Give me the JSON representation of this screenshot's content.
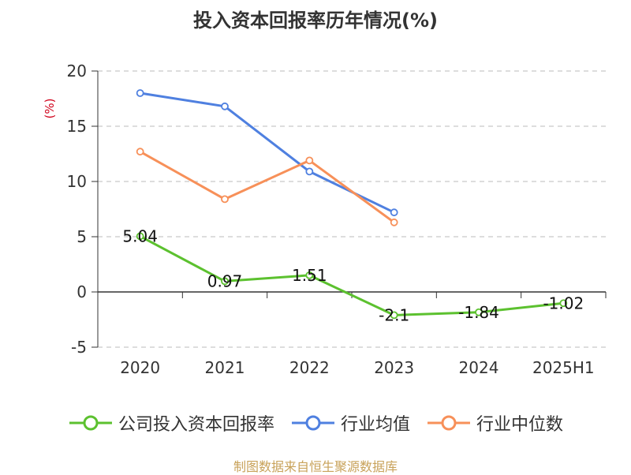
{
  "title": "投入资本回报率历年情况(%)",
  "source": "制图数据来自恒生聚源数据库",
  "colors": {
    "company": "#5cc12f",
    "industry_avg": "#4f80e0",
    "industry_median": "#f79059",
    "unit": "#d0021b",
    "source": "#c8a25a",
    "grid": "#bbbbbb"
  },
  "chart_data": {
    "type": "line",
    "title": "投入资本回报率历年情况(%)",
    "ylabel": "(%)",
    "xlabel": "",
    "categories": [
      "2020",
      "2021",
      "2022",
      "2023",
      "2024",
      "2025H1"
    ],
    "ylim": [
      -5,
      20
    ],
    "yticks": [
      -5,
      0,
      5,
      10,
      15,
      20
    ],
    "grid": true,
    "legend_position": "bottom",
    "series": [
      {
        "name": "公司投入资本回报率",
        "color": "#5cc12f",
        "values": [
          5.04,
          0.97,
          1.51,
          -2.1,
          -1.84,
          -1.02
        ],
        "labels": [
          "5.04",
          "0.97",
          "1.51",
          "-2.1",
          "-1.84",
          "-1.02"
        ]
      },
      {
        "name": "行业均值",
        "color": "#4f80e0",
        "values": [
          18.0,
          16.8,
          10.9,
          7.2,
          null,
          null
        ]
      },
      {
        "name": "行业中位数",
        "color": "#f79059",
        "values": [
          12.7,
          8.4,
          11.9,
          6.3,
          null,
          null
        ]
      }
    ]
  }
}
